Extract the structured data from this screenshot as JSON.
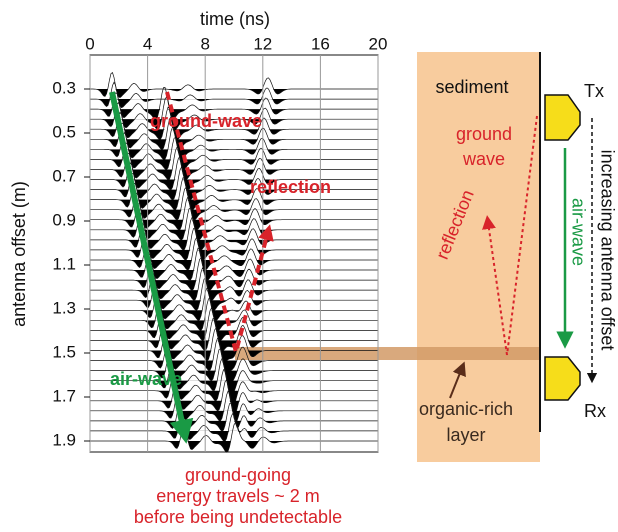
{
  "axes": {
    "x_label": "time (ns)",
    "xticks": [
      0,
      4,
      8,
      12,
      16,
      20
    ],
    "xlim": [
      0,
      20
    ],
    "y_label": "antenna offset (m)",
    "yticks": [
      0.3,
      0.5,
      0.7,
      0.9,
      1.1,
      1.3,
      1.5,
      1.7,
      1.9
    ],
    "ylim": [
      0.3,
      1.9
    ]
  },
  "plot_annotations": {
    "ground_wave": "ground-wave",
    "reflection": "reflection",
    "air_wave": "air-wave",
    "caption": [
      "ground-going",
      "energy travels ~ 2 m",
      "before being undetectable"
    ]
  },
  "schematic": {
    "sediment": "sediment",
    "tx": "Tx",
    "rx": "Rx",
    "ground_wave": [
      "ground",
      "wave"
    ],
    "reflection": "reflection",
    "air_wave": "air-wave",
    "offset": "increasing antenna offset",
    "layer": [
      "organic-rich",
      "layer"
    ]
  }
}
